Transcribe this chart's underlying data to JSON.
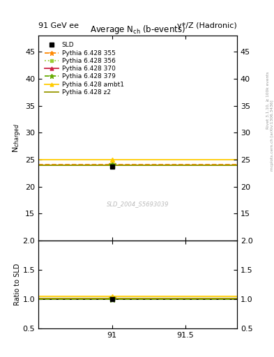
{
  "title_left": "91 GeV ee",
  "title_right": "γ*/Z (Hadronic)",
  "plot_title": "Average N$_{ch}$ (b-events)",
  "ylabel_main": "N$_{charged}$",
  "ylabel_ratio": "Ratio to SLD",
  "right_label_top": "Rivet 3.1.10, ≥ 100k events",
  "right_label_bot": "mcplots.cern.ch [arXiv:1306.3436]",
  "watermark": "SLD_2004_S5693039",
  "xlim": [
    90.5,
    91.85
  ],
  "ylim_main": [
    10,
    48
  ],
  "ylim_ratio": [
    0.5,
    2.0
  ],
  "xticks": [
    91.0,
    91.5
  ],
  "yticks_main": [
    15,
    20,
    25,
    30,
    35,
    40,
    45
  ],
  "yticks_ratio": [
    0.5,
    1.0,
    1.5,
    2.0
  ],
  "data_x": 91.0,
  "data_y": 23.78,
  "data_yerr": 0.28,
  "lines": [
    {
      "label": "Pythia 6.428 355",
      "y": 24.05,
      "color": "#FF8800",
      "linestyle": "--",
      "marker": "*",
      "markersize": 7
    },
    {
      "label": "Pythia 6.428 356",
      "y": 24.0,
      "color": "#99CC33",
      "linestyle": ":",
      "marker": "s",
      "markersize": 4
    },
    {
      "label": "Pythia 6.428 370",
      "y": 23.96,
      "color": "#CC2244",
      "linestyle": "-",
      "marker": "^",
      "markersize": 5
    },
    {
      "label": "Pythia 6.428 379",
      "y": 23.93,
      "color": "#66AA00",
      "linestyle": "--",
      "marker": "*",
      "markersize": 7
    },
    {
      "label": "Pythia 6.428 ambt1",
      "y": 25.05,
      "color": "#FFCC00",
      "linestyle": "-",
      "marker": "^",
      "markersize": 5
    },
    {
      "label": "Pythia 6.428 z2",
      "y": 23.98,
      "color": "#999900",
      "linestyle": "-",
      "marker": "none",
      "markersize": 4
    }
  ],
  "bg_color": "#FFFFFF",
  "grid_color": "#CCCCCC"
}
